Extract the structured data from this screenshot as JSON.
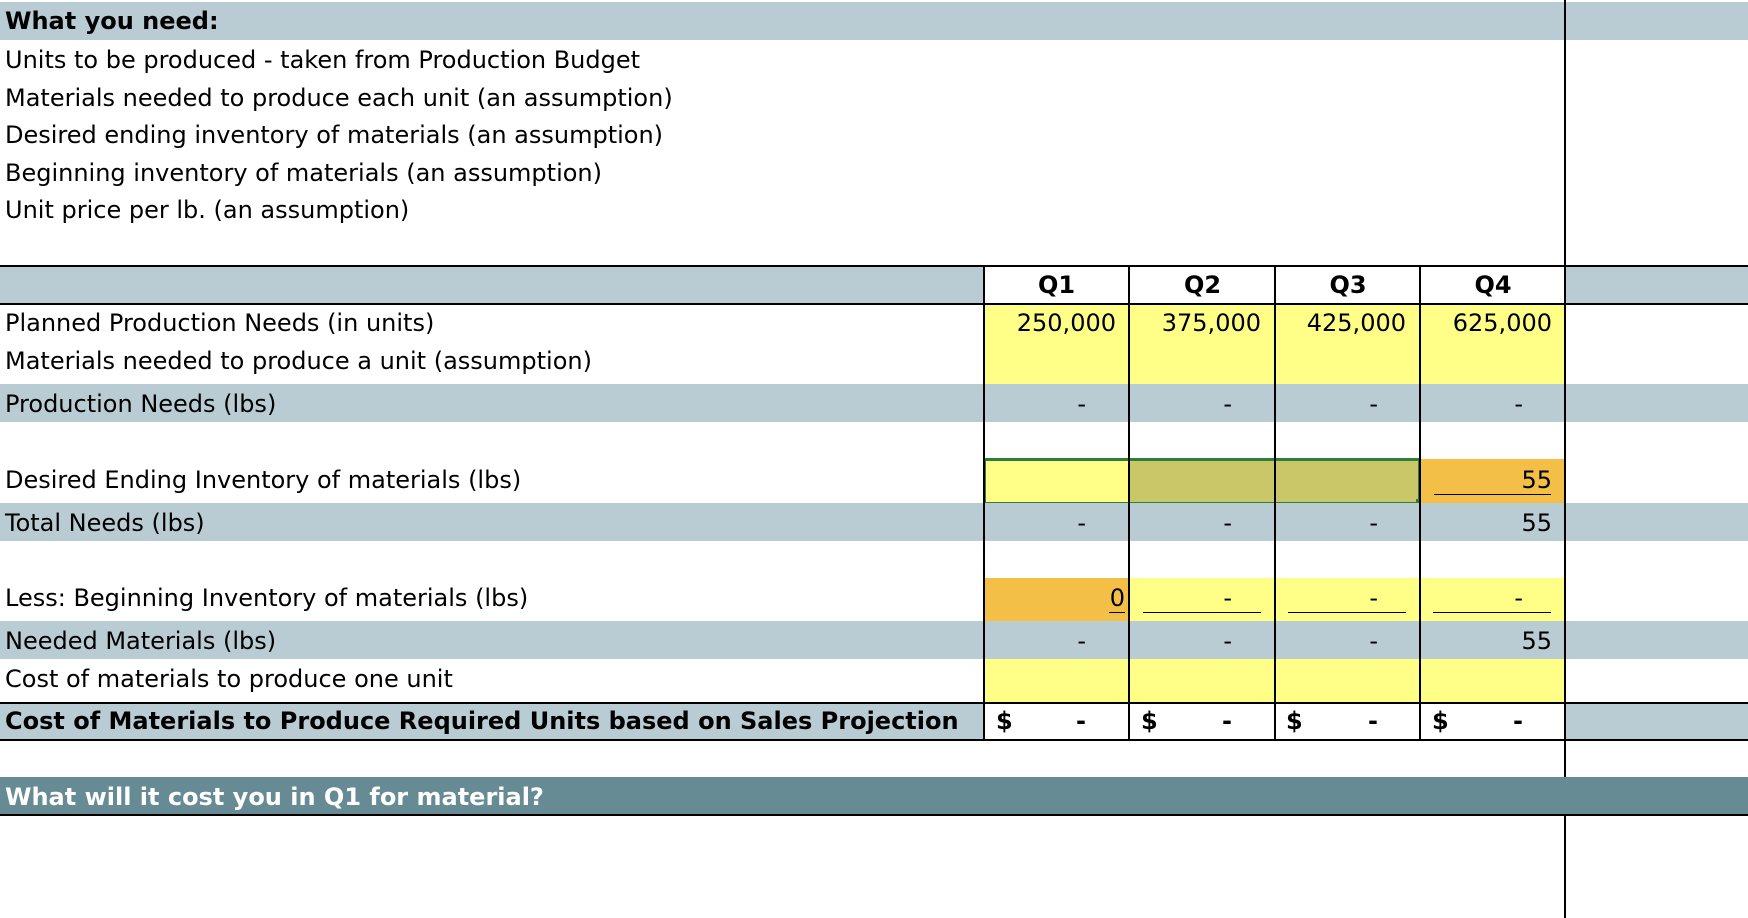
{
  "intro": {
    "heading": "What you need:",
    "items": [
      "Units to be produced - taken from Production Budget",
      "Materials needed to produce each unit (an assumption)",
      "Desired ending inventory of materials (an assumption)",
      "Beginning inventory of materials (an assumption)",
      "Unit price per lb. (an assumption)"
    ]
  },
  "table": {
    "quarters": [
      "Q1",
      "Q2",
      "Q3",
      "Q4"
    ],
    "rows": {
      "planned": {
        "label": "Planned Production Needs (in units)",
        "values": [
          "250,000",
          "375,000",
          "425,000",
          "625,000"
        ]
      },
      "materials_per_unit": {
        "label": "Materials needed to produce a unit (assumption)"
      },
      "production_needs": {
        "label": "Production Needs (lbs)",
        "values": [
          "-",
          "-",
          "-",
          "-"
        ]
      },
      "desired_ending": {
        "label": "Desired Ending Inventory of materials (lbs)",
        "q4": "55"
      },
      "total_needs": {
        "label": "Total Needs (lbs)",
        "values": [
          "-",
          "-",
          "-",
          "55"
        ]
      },
      "beginning_inventory": {
        "label": "Less: Beginning Inventory of materials (lbs)",
        "values": [
          "0",
          "-",
          "-",
          "-"
        ]
      },
      "needed_materials": {
        "label": "Needed Materials (lbs)",
        "values": [
          "-",
          "-",
          "-",
          "55"
        ]
      },
      "cost_per_unit": {
        "label": "Cost of materials to produce one unit"
      },
      "cost_total": {
        "label": "Cost of Materials to Produce Required Units based on Sales Projection",
        "currency": "$",
        "values": [
          "-",
          "-",
          "-",
          "-"
        ]
      }
    }
  },
  "question": "What will it cost you in Q1 for material?",
  "colors": {
    "band_grey": "#b9cbd3",
    "input_yellow": "#ffff88",
    "selection_olive": "#c9c767",
    "highlight_orange": "#f3bf47",
    "question_bar": "#678b94",
    "selection_border": "#2e7d3a"
  }
}
